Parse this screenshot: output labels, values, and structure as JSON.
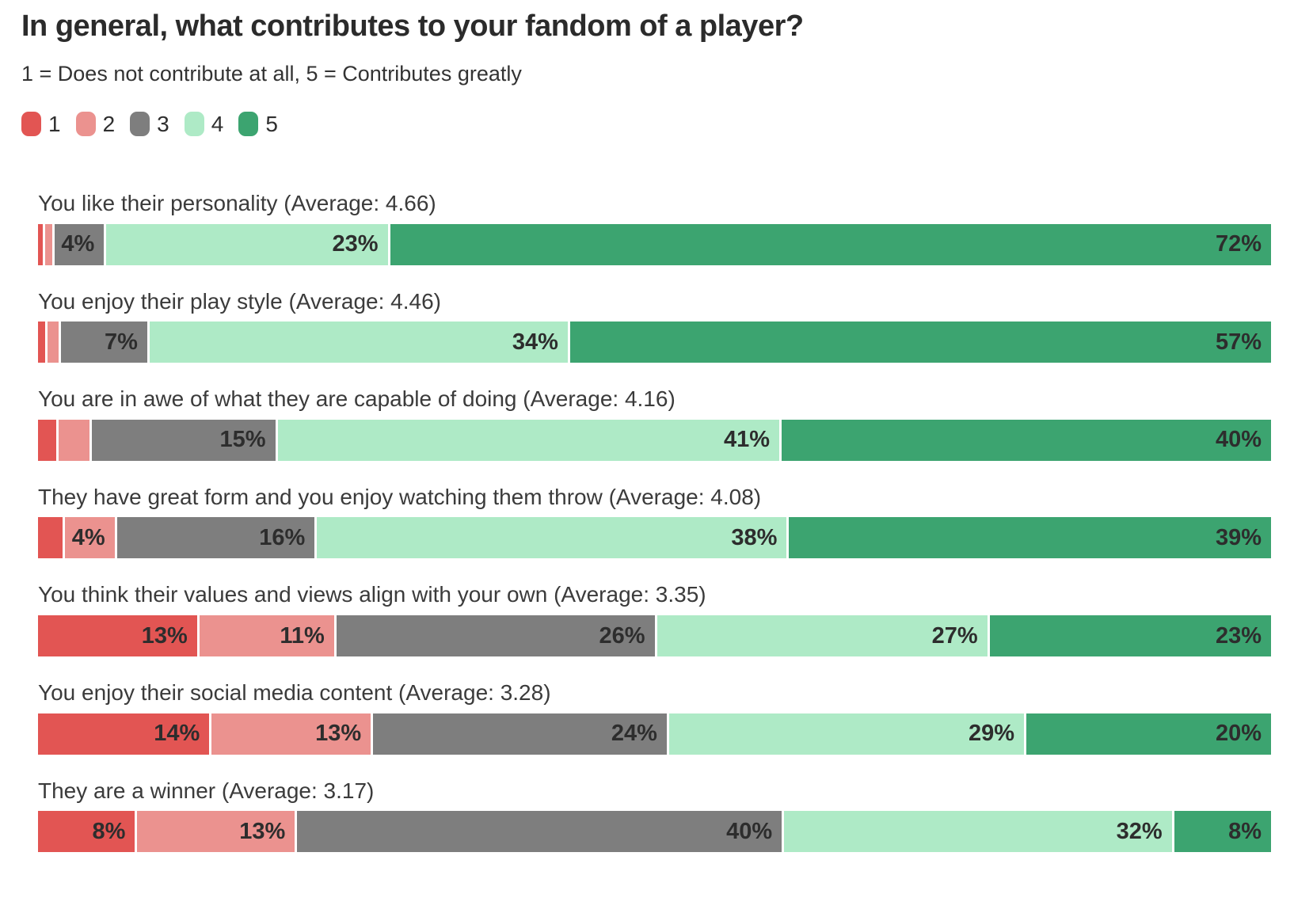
{
  "header": {
    "title": "In general, what contributes to your fandom of a player?",
    "subtitle": "1 = Does not contribute at all, 5 = Contributes greatly"
  },
  "colors": {
    "rating_1_red": "#e25553",
    "rating_2_pink": "#eb928f",
    "rating_3_gray": "#7e7e7e",
    "rating_4_light_green": "#aeeac6",
    "rating_5_green": "#3ca470",
    "title_text": "#2b2b2b",
    "body_text": "#3b3b3b",
    "value_text": "#2d2d2d",
    "background": "#ffffff"
  },
  "chart_data": {
    "type": "bar",
    "variant": "stacked-horizontal-percentage",
    "orientation": "horizontal",
    "legend_position": "top",
    "x_range": [
      0,
      100
    ],
    "grid": false,
    "title": "In general, what contributes to your fandom of a player?",
    "subtitle": "1 = Does not contribute at all, 5 = Contributes greatly",
    "legend": [
      {
        "label": "1",
        "color": "#e25553"
      },
      {
        "label": "2",
        "color": "#eb928f"
      },
      {
        "label": "3",
        "color": "#7e7e7e"
      },
      {
        "label": "4",
        "color": "#aeeac6"
      },
      {
        "label": "5",
        "color": "#3ca470"
      }
    ],
    "rows": [
      {
        "category": "You like their personality",
        "average": "4.66",
        "label": "You like their personality (Average: 4.66)",
        "values": [
          0.4,
          0.6,
          4,
          23,
          72
        ],
        "segment_labels": [
          "",
          "",
          "4%",
          "23%",
          "72%"
        ]
      },
      {
        "category": "You enjoy their play style",
        "average": "4.46",
        "label": "You enjoy their play style (Average: 4.46)",
        "values": [
          0.6,
          0.9,
          7,
          34,
          57
        ],
        "segment_labels": [
          "",
          "",
          "7%",
          "34%",
          "57%"
        ]
      },
      {
        "category": "You are in awe of what they are capable of doing",
        "average": "4.16",
        "label": "You are in awe of what they are capable of doing (Average: 4.16)",
        "values": [
          1.5,
          2.5,
          15,
          41,
          40
        ],
        "segment_labels": [
          "",
          "",
          "15%",
          "41%",
          "40%"
        ]
      },
      {
        "category": "They have great form and you enjoy watching them throw",
        "average": "4.08",
        "label": "They have great form and you enjoy watching them throw (Average: 4.08)",
        "values": [
          2,
          4,
          16,
          38,
          39
        ],
        "segment_labels": [
          "",
          "4%",
          "16%",
          "38%",
          "39%"
        ]
      },
      {
        "category": "You think their values and views align with your own",
        "average": "3.35",
        "label": "You think their values and views align with your own (Average: 3.35)",
        "values": [
          13,
          11,
          26,
          27,
          23
        ],
        "segment_labels": [
          "13%",
          "11%",
          "26%",
          "27%",
          "23%"
        ]
      },
      {
        "category": "You enjoy their social media content",
        "average": "3.28",
        "label": "You enjoy their social media content (Average: 3.28)",
        "values": [
          14,
          13,
          24,
          29,
          20
        ],
        "segment_labels": [
          "14%",
          "13%",
          "24%",
          "29%",
          "20%"
        ]
      },
      {
        "category": "They are a winner",
        "average": "3.17",
        "label": "They are a winner (Average: 3.17)",
        "values": [
          8,
          13,
          40,
          32,
          8
        ],
        "segment_labels": [
          "8%",
          "13%",
          "40%",
          "32%",
          "8%"
        ]
      }
    ]
  }
}
